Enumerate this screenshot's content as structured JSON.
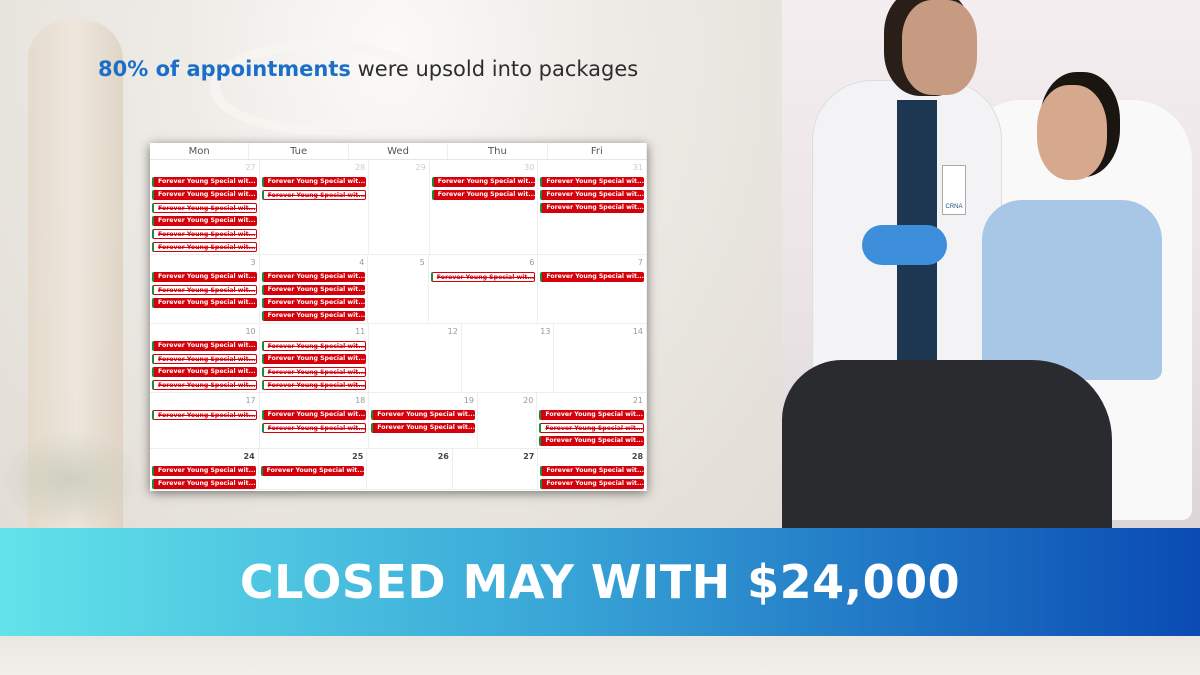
{
  "headline": {
    "highlight": "80% of appointments",
    "rest": " were upsold into packages"
  },
  "calendar": {
    "days": [
      "Mon",
      "Tue",
      "Wed",
      "Thu",
      "Fri"
    ],
    "event_label": "Forever Young Special wit...",
    "weeks": [
      [
        {
          "date": "27",
          "past": true,
          "events": [
            "f",
            "f",
            "o",
            "f",
            "o",
            "o"
          ]
        },
        {
          "date": "28",
          "past": true,
          "events": [
            "f",
            "o"
          ]
        },
        {
          "date": "29",
          "past": true,
          "events": []
        },
        {
          "date": "30",
          "past": true,
          "events": [
            "f",
            "f"
          ]
        },
        {
          "date": "31",
          "past": true,
          "events": [
            "f",
            "f",
            "f"
          ]
        }
      ],
      [
        {
          "date": "3",
          "events": [
            "f",
            "o",
            "f"
          ]
        },
        {
          "date": "4",
          "events": [
            "f",
            "f",
            "f",
            "f"
          ]
        },
        {
          "date": "5",
          "events": []
        },
        {
          "date": "6",
          "events": [
            "o"
          ]
        },
        {
          "date": "7",
          "events": [
            "f"
          ]
        }
      ],
      [
        {
          "date": "10",
          "events": [
            "f",
            "o",
            "f",
            "o"
          ]
        },
        {
          "date": "11",
          "events": [
            "o",
            "f",
            "o",
            "o"
          ]
        },
        {
          "date": "12",
          "events": []
        },
        {
          "date": "13",
          "events": []
        },
        {
          "date": "14",
          "events": []
        }
      ],
      [
        {
          "date": "17",
          "events": [
            "o"
          ]
        },
        {
          "date": "18",
          "events": [
            "f",
            "o"
          ]
        },
        {
          "date": "19",
          "events": [
            "f",
            "f"
          ]
        },
        {
          "date": "20",
          "events": []
        },
        {
          "date": "21",
          "events": [
            "f",
            "o",
            "f"
          ]
        }
      ],
      [
        {
          "date": "24",
          "current": true,
          "events": [
            "f",
            "f"
          ]
        },
        {
          "date": "25",
          "current": true,
          "events": [
            "f"
          ]
        },
        {
          "date": "26",
          "current": true,
          "events": []
        },
        {
          "date": "27",
          "current": true,
          "events": []
        },
        {
          "date": "28",
          "current": true,
          "events": [
            "f",
            "f"
          ]
        }
      ]
    ],
    "colors": {
      "event": "#d4000a",
      "stripe": "#1f8a3d"
    }
  },
  "photo": {
    "badge_text": "CRNA"
  },
  "banner": {
    "text": "CLOSED MAY WITH $24,000",
    "gradient": [
      "#62e3ea",
      "#0a4bb3"
    ]
  }
}
